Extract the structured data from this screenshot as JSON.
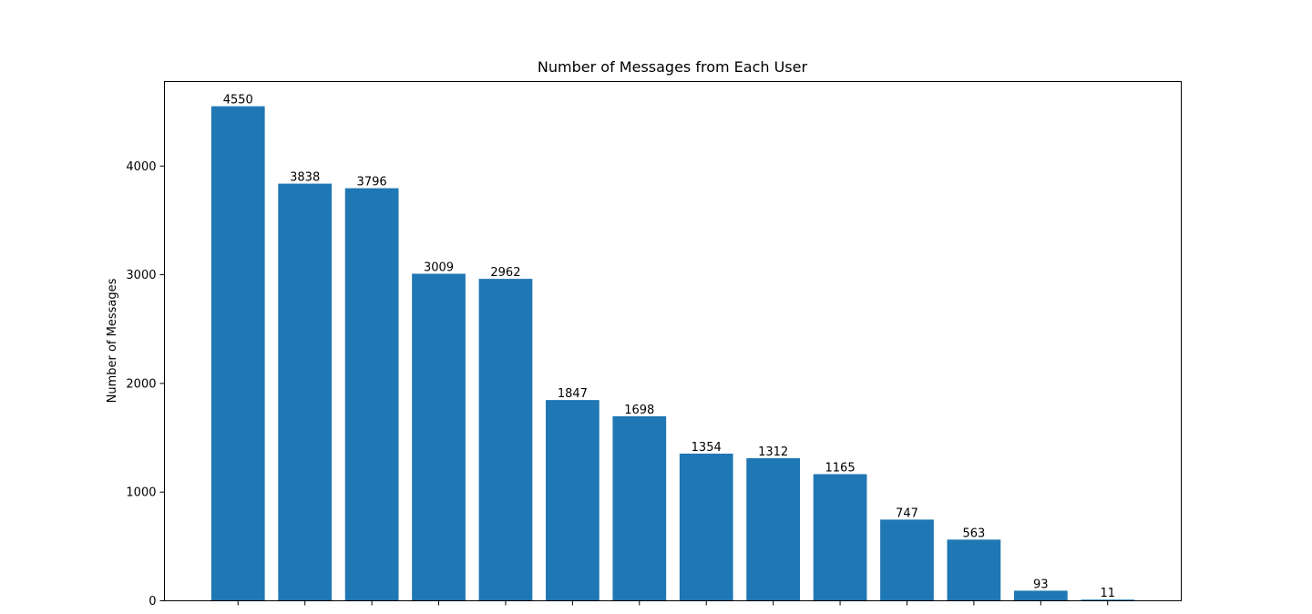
{
  "chart_data": {
    "type": "bar",
    "title": "Number of Messages from Each User",
    "xlabel": "",
    "ylabel": "Number of Messages",
    "categories": [
      "",
      "",
      "",
      "",
      "",
      "",
      "",
      "",
      "",
      "",
      "",
      "",
      "",
      ""
    ],
    "values": [
      4550,
      3838,
      3796,
      3009,
      2962,
      1847,
      1698,
      1354,
      1312,
      1165,
      747,
      563,
      93,
      11
    ],
    "data_labels": [
      "4550",
      "3838",
      "3796",
      "3009",
      "2962",
      "1847",
      "1698",
      "1354",
      "1312",
      "1165",
      "747",
      "563",
      "93",
      "11"
    ],
    "yticks": [
      0,
      1000,
      2000,
      3000,
      4000
    ],
    "ytick_labels": [
      "0",
      "1000",
      "2000",
      "3000",
      "4000"
    ],
    "ylim": [
      0,
      4777.5
    ],
    "grid": false,
    "bar_color": "#1f77b4"
  }
}
